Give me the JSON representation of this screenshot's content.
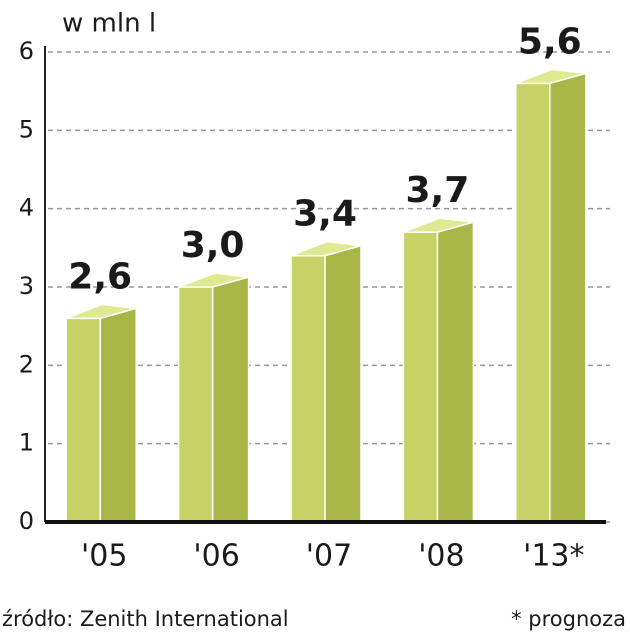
{
  "chart_data": {
    "type": "bar3d",
    "unit_label": "w mln l",
    "categories": [
      "'05",
      "'06",
      "'07",
      "'08",
      "'13*"
    ],
    "values": [
      2.6,
      3.0,
      3.4,
      3.7,
      5.6
    ],
    "value_labels": [
      "2,6",
      "3,0",
      "3,4",
      "3,7",
      "5,6"
    ],
    "colors": {
      "front": "#c6d266",
      "side": "#a7b646",
      "top": "#dfe992"
    },
    "ylim": [
      0,
      6
    ],
    "yticks": [
      0,
      1,
      2,
      3,
      4,
      5,
      6
    ],
    "grid": true,
    "source": "źródło: Zenith International",
    "note": "* prognoza"
  }
}
